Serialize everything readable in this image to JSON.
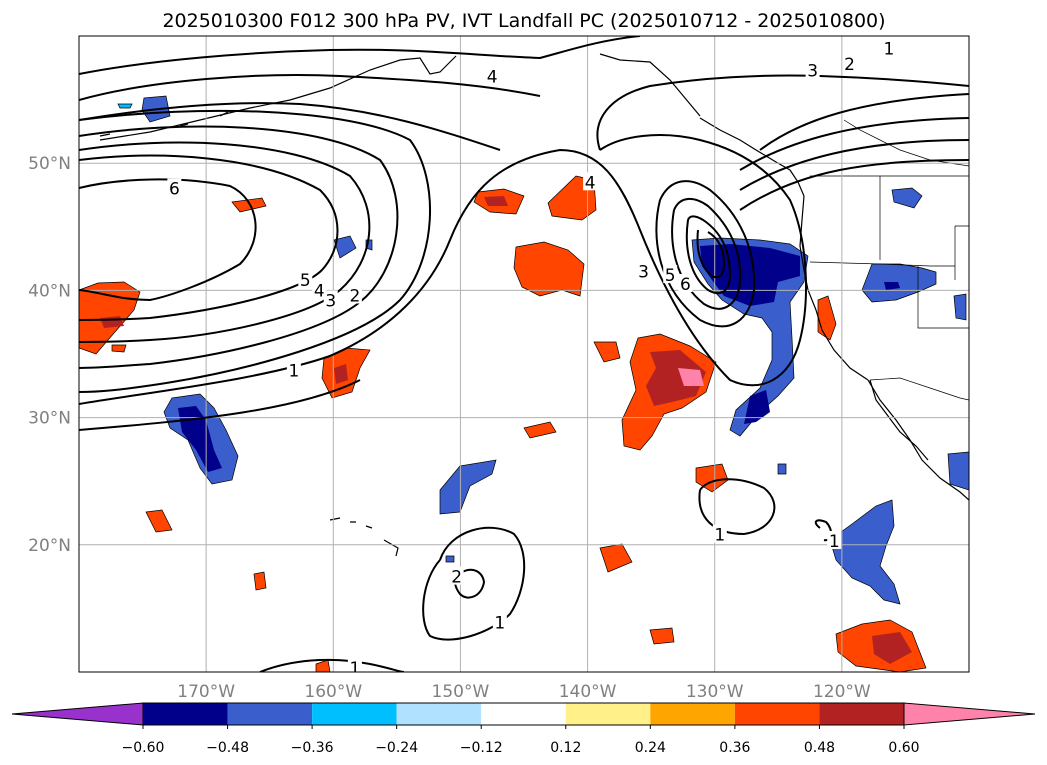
{
  "chart_data": {
    "type": "heatmap",
    "title": "2025010300 F012 300 hPa PV, IVT Landfall PC (2025010712 - 2025010800)",
    "lon_ticks": [
      {
        "lon": -170,
        "label": "170°W"
      },
      {
        "lon": -160,
        "label": "160°W"
      },
      {
        "lon": -150,
        "label": "150°W"
      },
      {
        "lon": -140,
        "label": "140°W"
      },
      {
        "lon": -130,
        "label": "130°W"
      },
      {
        "lon": -120,
        "label": "120°W"
      }
    ],
    "lat_ticks": [
      {
        "lat": 50,
        "label": "50°N"
      },
      {
        "lat": 40,
        "label": "40°N"
      },
      {
        "lat": 30,
        "label": "30°N"
      },
      {
        "lat": 20,
        "label": "20°N"
      }
    ],
    "lon_range": [
      -180,
      -110
    ],
    "lat_range": [
      10,
      60
    ],
    "grid": true,
    "colorbar": {
      "levels": [
        "−0.60",
        "−0.48",
        "−0.36",
        "−0.24",
        "−0.12",
        "0.12",
        "0.24",
        "0.36",
        "0.48",
        "0.60"
      ],
      "colors": [
        "#9932cc",
        "#00008b",
        "#3a5fcd",
        "#00bfff",
        "#b0e2ff",
        "#ffffff",
        "#fff08a",
        "#ffa500",
        "#ff4500",
        "#b22222",
        "#ff82ab"
      ]
    },
    "contour_labels": [
      {
        "text": "4",
        "lon": -147.5,
        "lat": 56.8
      },
      {
        "text": "3",
        "lon": -122.3,
        "lat": 57.3
      },
      {
        "text": "2",
        "lon": -119.4,
        "lat": 57.8
      },
      {
        "text": "1",
        "lon": -116.3,
        "lat": 59.0
      },
      {
        "text": "6",
        "lon": -172.5,
        "lat": 48.0
      },
      {
        "text": "5",
        "lon": -162.2,
        "lat": 40.8
      },
      {
        "text": "4",
        "lon": -161.1,
        "lat": 40.0
      },
      {
        "text": "3",
        "lon": -160.2,
        "lat": 39.2
      },
      {
        "text": "2",
        "lon": -158.3,
        "lat": 39.6
      },
      {
        "text": "1",
        "lon": -163.1,
        "lat": 33.7
      },
      {
        "text": "4",
        "lon": -139.8,
        "lat": 48.5
      },
      {
        "text": "3",
        "lon": -135.6,
        "lat": 41.5
      },
      {
        "text": "5",
        "lon": -133.5,
        "lat": 41.2
      },
      {
        "text": "6",
        "lon": -132.3,
        "lat": 40.5
      },
      {
        "text": "1",
        "lon": -129.6,
        "lat": 20.8
      },
      {
        "text": "1",
        "lon": -120.6,
        "lat": 20.3
      },
      {
        "text": "2",
        "lon": -150.3,
        "lat": 17.5
      },
      {
        "text": "1",
        "lon": -146.9,
        "lat": 13.9
      },
      {
        "text": "1",
        "lon": -158.3,
        "lat": 10.3
      }
    ]
  }
}
